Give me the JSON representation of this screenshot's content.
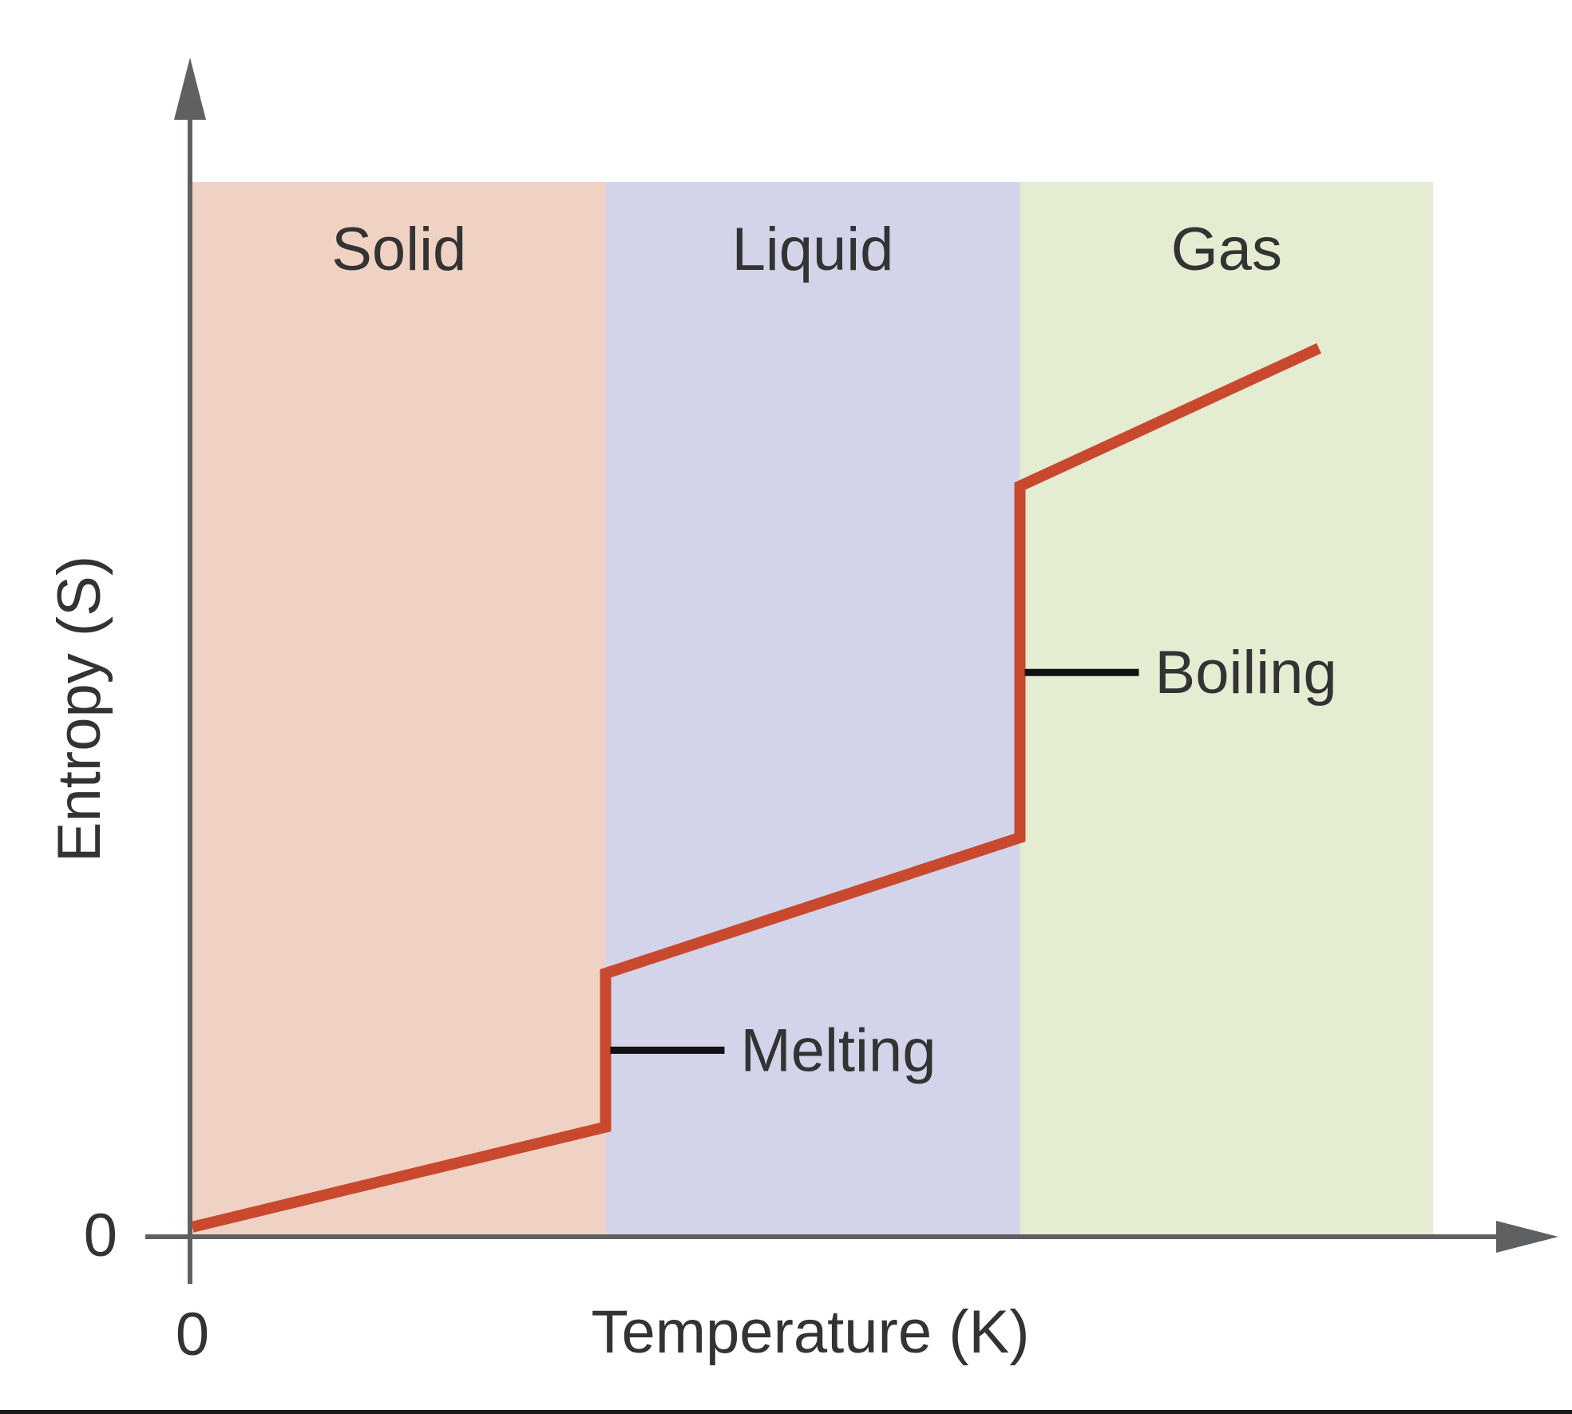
{
  "chart_data": {
    "type": "line",
    "title": "",
    "xlabel": "Temperature (K)",
    "ylabel": "Entropy (S)",
    "x_ticks": [
      {
        "value": 0,
        "label": "0"
      }
    ],
    "y_ticks": [
      {
        "value": 0,
        "label": "0"
      }
    ],
    "xlim": [
      0,
      100
    ],
    "ylim": [
      0,
      100
    ],
    "grid": false,
    "legend": "none",
    "regions": [
      {
        "name": "Solid",
        "x_start": 0,
        "x_end": 33.3,
        "color": "#f0d2c5"
      },
      {
        "name": "Liquid",
        "x_start": 33.3,
        "x_end": 66.7,
        "color": "#d3d4ea"
      },
      {
        "name": "Gas",
        "x_start": 66.7,
        "x_end": 100,
        "color": "#e4ecd2"
      }
    ],
    "series": [
      {
        "color": "#c8492d",
        "points": [
          {
            "x": 0,
            "y": 0.7
          },
          {
            "x": 33.3,
            "y": 10.2
          },
          {
            "x": 33.3,
            "y": 24.8
          },
          {
            "x": 66.7,
            "y": 37.7
          },
          {
            "x": 66.7,
            "y": 71.1
          },
          {
            "x": 90.8,
            "y": 84.2
          }
        ]
      }
    ],
    "annotations": [
      {
        "text": "Melting",
        "x": 33.3,
        "y": 17.5
      },
      {
        "text": "Boiling",
        "x": 66.7,
        "y": 53.4
      }
    ]
  }
}
